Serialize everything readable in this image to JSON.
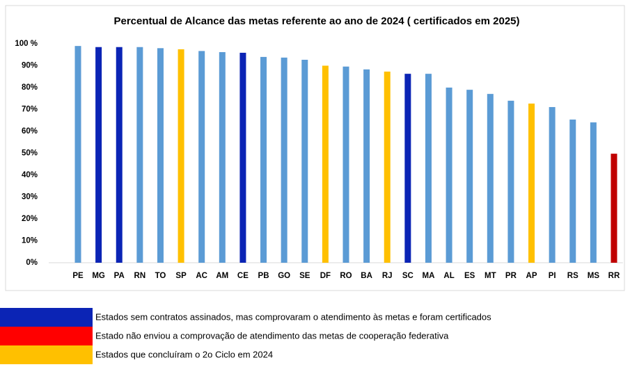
{
  "chart_data": {
    "type": "bar",
    "title": "Percentual de Alcance das metas referente ao ano de 2024 ( certificados em 2025)",
    "categories": [
      "PE",
      "MG",
      "PA",
      "RN",
      "TO",
      "SP",
      "AC",
      "AM",
      "CE",
      "PB",
      "GO",
      "SE",
      "DF",
      "RO",
      "BA",
      "RJ",
      "SC",
      "MA",
      "AL",
      "ES",
      "MT",
      "PR",
      "AP",
      "PI",
      "RS",
      "MS",
      "RR"
    ],
    "values": [
      99,
      98.5,
      98.5,
      98.5,
      98,
      97.5,
      96.7,
      96.2,
      95.9,
      94,
      93.7,
      92.7,
      90,
      89.6,
      88.3,
      87.3,
      86.3,
      86.3,
      80,
      79,
      77.1,
      74,
      72.7,
      71.1,
      65.4,
      64.1,
      49.8
    ],
    "colors": [
      "#5b9bd5",
      "#0b24b5",
      "#0b24b5",
      "#5b9bd5",
      "#5b9bd5",
      "#ffc000",
      "#5b9bd5",
      "#5b9bd5",
      "#0b24b5",
      "#5b9bd5",
      "#5b9bd5",
      "#5b9bd5",
      "#ffc000",
      "#5b9bd5",
      "#5b9bd5",
      "#ffc000",
      "#0b24b5",
      "#5b9bd5",
      "#5b9bd5",
      "#5b9bd5",
      "#5b9bd5",
      "#5b9bd5",
      "#ffc000",
      "#5b9bd5",
      "#5b9bd5",
      "#5b9bd5",
      "#c00000"
    ],
    "ylim": [
      0,
      100
    ],
    "yticks": [
      {
        "value": 0,
        "label": "0%"
      },
      {
        "value": 10,
        "label": "10%"
      },
      {
        "value": 20,
        "label": "20%"
      },
      {
        "value": 30,
        "label": "30%"
      },
      {
        "value": 40,
        "label": "40%"
      },
      {
        "value": 50,
        "label": "50%"
      },
      {
        "value": 60,
        "label": "60%"
      },
      {
        "value": 70,
        "label": "70%"
      },
      {
        "value": 80,
        "label": "80%"
      },
      {
        "value": 90,
        "label": "90%"
      },
      {
        "value": 100,
        "label": "100 %"
      }
    ],
    "grid": false,
    "legend": [
      {
        "color": "#0b24b5",
        "label": "Estados sem contratos assinados, mas comprovaram o atendimento às metas e foram certificados"
      },
      {
        "color": "#ff0000",
        "label": "Estado não enviou a comprovação de atendimento das metas de cooperação federativa"
      },
      {
        "color": "#ffc000",
        "label": "Estados que concluíram o 2o Ciclo em 2024"
      }
    ]
  }
}
